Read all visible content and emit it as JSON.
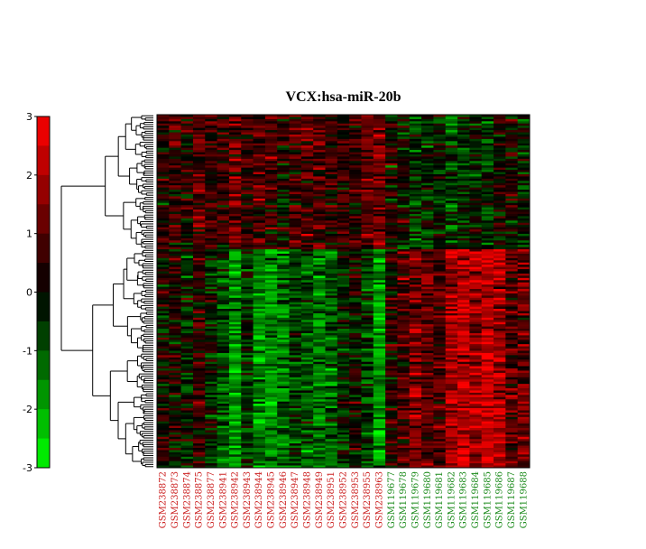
{
  "chart_data": {
    "type": "heatmap",
    "title": "VCX:hsa-miR-20b",
    "colorbar": {
      "ticks": [
        3,
        2,
        1,
        0,
        -1,
        -2,
        -3
      ],
      "range": [
        -3,
        3
      ],
      "low_color": "#00ff00",
      "mid_color": "#000000",
      "high_color": "#ff0000"
    },
    "samples": [
      {
        "label": "GSM238872",
        "group": "red"
      },
      {
        "label": "GSM238873",
        "group": "red"
      },
      {
        "label": "GSM238874",
        "group": "red"
      },
      {
        "label": "GSM238875",
        "group": "red"
      },
      {
        "label": "GSM238877",
        "group": "red"
      },
      {
        "label": "GSM238941",
        "group": "red"
      },
      {
        "label": "GSM238942",
        "group": "red"
      },
      {
        "label": "GSM238943",
        "group": "red"
      },
      {
        "label": "GSM238944",
        "group": "red"
      },
      {
        "label": "GSM238945",
        "group": "red"
      },
      {
        "label": "GSM238946",
        "group": "red"
      },
      {
        "label": "GSM238947",
        "group": "red"
      },
      {
        "label": "GSM238948",
        "group": "red"
      },
      {
        "label": "GSM238949",
        "group": "red"
      },
      {
        "label": "GSM238951",
        "group": "red"
      },
      {
        "label": "GSM238952",
        "group": "red"
      },
      {
        "label": "GSM238953",
        "group": "red"
      },
      {
        "label": "GSM238955",
        "group": "red"
      },
      {
        "label": "GSM238963",
        "group": "red"
      },
      {
        "label": "GSM119677",
        "group": "green"
      },
      {
        "label": "GSM119678",
        "group": "green"
      },
      {
        "label": "GSM119679",
        "group": "green"
      },
      {
        "label": "GSM119680",
        "group": "green"
      },
      {
        "label": "GSM119681",
        "group": "green"
      },
      {
        "label": "GSM119682",
        "group": "green"
      },
      {
        "label": "GSM119683",
        "group": "green"
      },
      {
        "label": "GSM119684",
        "group": "green"
      },
      {
        "label": "GSM119685",
        "group": "green"
      },
      {
        "label": "GSM119686",
        "group": "green"
      },
      {
        "label": "GSM119687",
        "group": "green"
      },
      {
        "label": "GSM119688",
        "group": "green"
      }
    ],
    "group_colors": {
      "red": "#cc2222",
      "green": "#1a8a1a"
    },
    "column_profiles": [
      [
        0.3,
        0.1
      ],
      [
        0.8,
        0.2
      ],
      [
        0.2,
        -0.3
      ],
      [
        1.0,
        0.4
      ],
      [
        0.4,
        -0.2
      ],
      [
        0.6,
        -0.9
      ],
      [
        1.2,
        -1.6
      ],
      [
        0.5,
        -0.5
      ],
      [
        0.9,
        -1.5
      ],
      [
        0.7,
        -1.7
      ],
      [
        0.3,
        -1.2
      ],
      [
        0.8,
        -0.8
      ],
      [
        0.9,
        -1.0
      ],
      [
        1.0,
        -1.4
      ],
      [
        0.6,
        -1.1
      ],
      [
        0.5,
        -0.2
      ],
      [
        0.4,
        0.1
      ],
      [
        1.1,
        -0.6
      ],
      [
        1.3,
        -1.8
      ],
      [
        0.2,
        0.3
      ],
      [
        0.0,
        0.8
      ],
      [
        -0.6,
        1.4
      ],
      [
        -0.2,
        1.1
      ],
      [
        -0.3,
        0.9
      ],
      [
        -0.8,
        2.0
      ],
      [
        -0.4,
        2.2
      ],
      [
        -0.2,
        2.0
      ],
      [
        -0.5,
        2.3
      ],
      [
        0.0,
        1.9
      ],
      [
        0.2,
        1.0
      ],
      [
        -0.3,
        1.2
      ]
    ],
    "row_count": 160,
    "cluster_split_fraction": 0.38
  }
}
